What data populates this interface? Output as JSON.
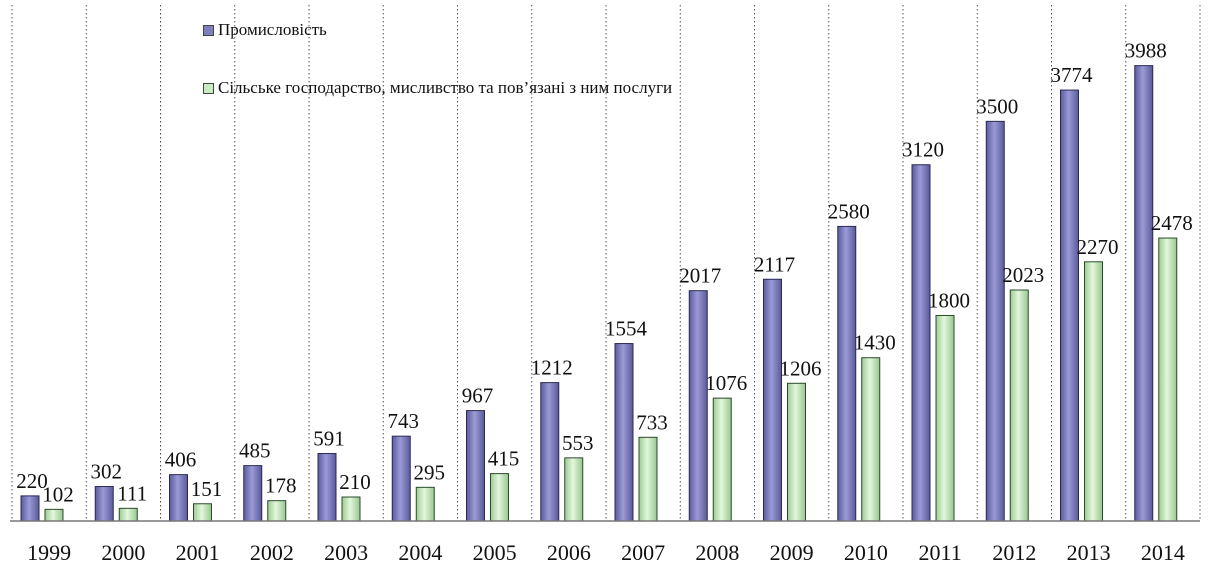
{
  "chart_data": {
    "type": "bar",
    "categories": [
      "1999",
      "2000",
      "2001",
      "2002",
      "2003",
      "2004",
      "2005",
      "2006",
      "2007",
      "2008",
      "2009",
      "2010",
      "2011",
      "2012",
      "2013",
      "2014"
    ],
    "series": [
      {
        "name": "Промисловість",
        "values": [
          220,
          302,
          406,
          485,
          591,
          743,
          967,
          1212,
          1554,
          2017,
          2117,
          2580,
          3120,
          3500,
          3774,
          3988
        ],
        "color": "#7f7fbf"
      },
      {
        "name": "Сільське господарство, мисливство та пов’язані з ним послуги",
        "values": [
          102,
          111,
          151,
          178,
          210,
          295,
          415,
          553,
          733,
          1076,
          1206,
          1430,
          1800,
          2023,
          2270,
          2478
        ],
        "color": "#c8ecc0"
      }
    ],
    "ylim": [
      0,
      4300
    ],
    "grid": "vertical dotted lines between categories",
    "legend_position": "top-left"
  }
}
